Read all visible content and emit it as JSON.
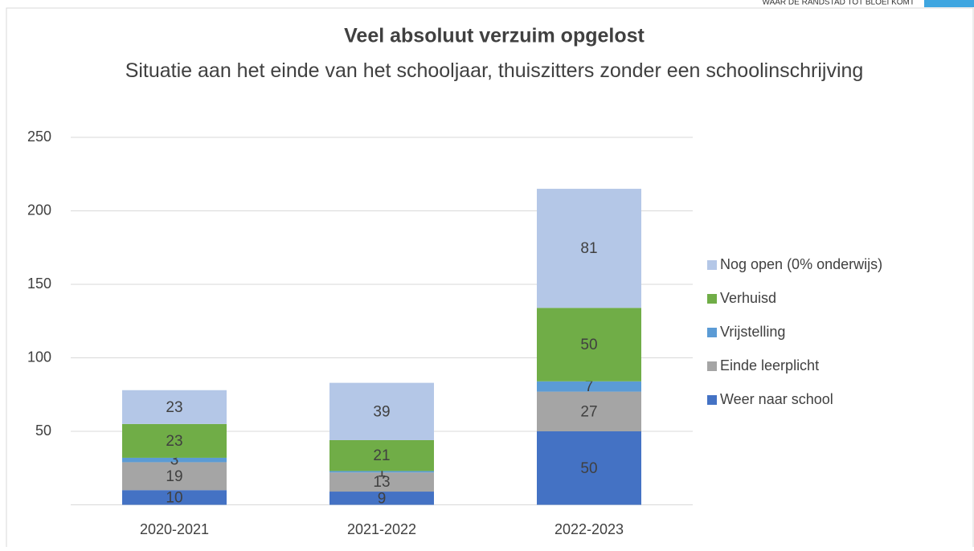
{
  "header_text": "WAAR DE RANDSTAD TOT BLOEI KOMT",
  "chart_data": {
    "type": "stacked_bar",
    "title": "Veel absoluut verzuim opgelost",
    "subtitle": "Situatie aan het einde van het schooljaar, thuiszitters zonder een schoolinschrijving",
    "categories": [
      "2020-2021",
      "2021-2022",
      "2022-2023"
    ],
    "series": [
      {
        "name": "Weer naar school",
        "color": "#4472c4",
        "values": [
          10,
          9,
          50
        ]
      },
      {
        "name": "Einde leerplicht",
        "color": "#a5a5a5",
        "values": [
          19,
          13,
          27
        ]
      },
      {
        "name": "Vrijstelling",
        "color": "#5b9bd5",
        "values": [
          3,
          1,
          7
        ]
      },
      {
        "name": "Verhuisd",
        "color": "#70ad47",
        "values": [
          23,
          21,
          50
        ]
      },
      {
        "name": "Nog open (0% onderwijs)",
        "color": "#b4c7e7",
        "values": [
          23,
          39,
          81
        ]
      }
    ],
    "ylim": [
      0,
      250
    ],
    "yticks": [
      50,
      100,
      150,
      200,
      250
    ],
    "grid": true,
    "legend": "right"
  }
}
